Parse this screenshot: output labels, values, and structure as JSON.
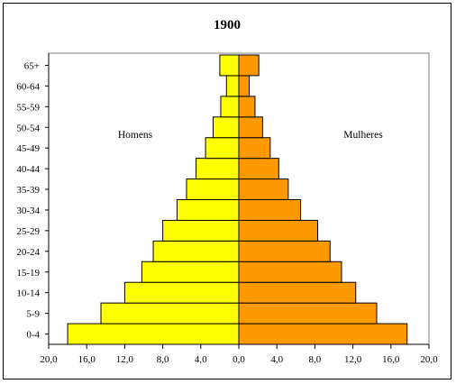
{
  "chart_data": {
    "type": "bar",
    "title": "1900",
    "categories": [
      "0-4",
      "5-9",
      "10-14",
      "15-19",
      "20-24",
      "25-29",
      "30-34",
      "35-39",
      "40-44",
      "45-49",
      "50-54",
      "55-59",
      "60-64",
      "65+"
    ],
    "series": [
      {
        "name": "Homens",
        "values": [
          18.0,
          14.5,
          12.0,
          10.2,
          9.0,
          8.0,
          6.5,
          5.5,
          4.5,
          3.5,
          2.7,
          1.9,
          1.3,
          2.0
        ],
        "color": "#ffff00"
      },
      {
        "name": "Mulheres",
        "values": [
          17.7,
          14.5,
          12.3,
          10.8,
          9.6,
          8.3,
          6.5,
          5.2,
          4.2,
          3.3,
          2.5,
          1.7,
          1.1,
          2.1
        ],
        "color": "#ff9900"
      }
    ],
    "xlim": [
      -20,
      20
    ],
    "xticks": [
      "20,0",
      "16,0",
      "12,0",
      "8,0",
      "4,0",
      "0,0",
      "4,0",
      "8,0",
      "12,0",
      "16,0",
      "20,0"
    ],
    "plot_background": "#ffffff",
    "grid": false
  }
}
